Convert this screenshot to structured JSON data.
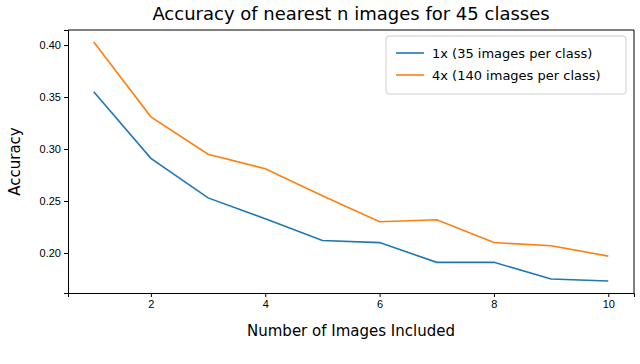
{
  "chart_data": {
    "type": "line",
    "title": "Accuracy of nearest n images for 45 classes",
    "x_label": "Number of Images Included",
    "y_label": "Accuracy",
    "x": [
      1,
      2,
      3,
      4,
      5,
      6,
      7,
      8,
      9,
      10
    ],
    "series": [
      {
        "name": "1x (35 images per class)",
        "color": "#1f77b4",
        "values": [
          0.355,
          0.291,
          0.253,
          0.233,
          0.212,
          0.21,
          0.191,
          0.191,
          0.175,
          0.173
        ]
      },
      {
        "name": "4x (140 images per class)",
        "color": "#ff7f0e",
        "values": [
          0.403,
          0.331,
          0.295,
          0.281,
          0.255,
          0.23,
          0.232,
          0.21,
          0.207,
          0.197
        ]
      }
    ],
    "xlim": [
      0.55,
      10.45
    ],
    "xticks": [
      2,
      4,
      6,
      8,
      10
    ],
    "ylim": [
      0.1615,
      0.4145
    ],
    "yticks": [
      {
        "value": 0.2,
        "label": "0.20"
      },
      {
        "value": 0.25,
        "label": "0.25"
      },
      {
        "value": 0.3,
        "label": "0.30"
      },
      {
        "value": 0.35,
        "label": "0.35"
      },
      {
        "value": 0.4,
        "label": "0.40"
      }
    ],
    "grid": false,
    "legend": "upper-right"
  }
}
